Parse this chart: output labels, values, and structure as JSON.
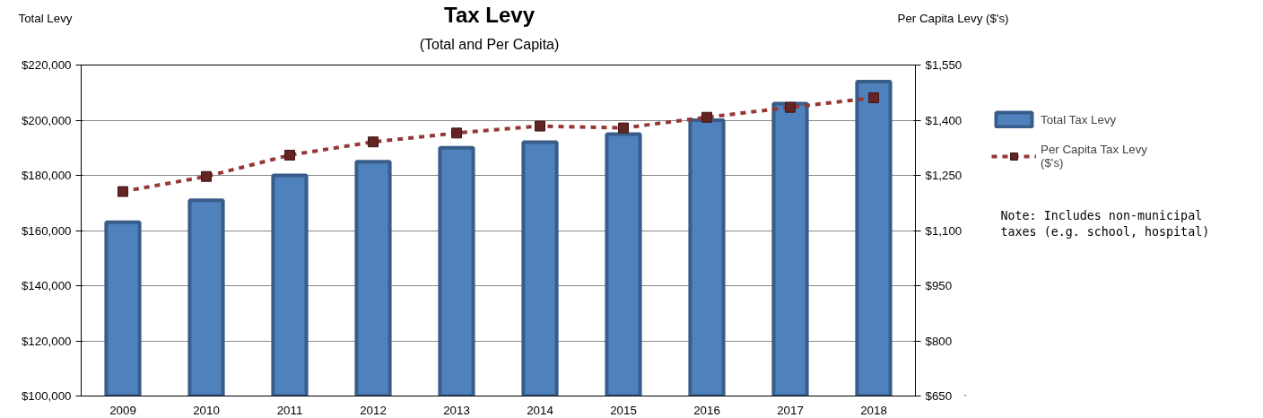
{
  "chart_data": {
    "type": "bar",
    "title": "Tax Levy",
    "subtitle": "(Total and Per Capita)",
    "ylabel": "Total Levy",
    "y2label": "Per Capita Levy ($'s)",
    "categories": [
      "2009",
      "2010",
      "2011",
      "2012",
      "2013",
      "2014",
      "2015",
      "2016",
      "2017",
      "2018"
    ],
    "series": [
      {
        "name": "Total Tax Levy",
        "type": "bar",
        "color": "#4f81bd",
        "values": [
          163000,
          171000,
          180000,
          185000,
          190000,
          192000,
          195000,
          200000,
          206000,
          214000
        ]
      },
      {
        "name": "Per Capita Tax Levy ($'s)",
        "type": "line",
        "axis": "y2",
        "color": "#953735",
        "marker": "square",
        "line_style": "dashed",
        "values": [
          1206,
          1247,
          1305,
          1341,
          1365,
          1384,
          1379,
          1408,
          1435,
          1461
        ]
      }
    ],
    "ylim": [
      100000,
      220000
    ],
    "yticks": [
      {
        "value": 100000,
        "label": "$100,000"
      },
      {
        "value": 120000,
        "label": "$120,000"
      },
      {
        "value": 140000,
        "label": "$140,000"
      },
      {
        "value": 160000,
        "label": "$160,000"
      },
      {
        "value": 180000,
        "label": "$180,000"
      },
      {
        "value": 200000,
        "label": "$200,000"
      },
      {
        "value": 220000,
        "label": "$220,000"
      }
    ],
    "y2lim": [
      650,
      1550
    ],
    "y2ticks": [
      {
        "value": 650,
        "label": "$650"
      },
      {
        "value": 800,
        "label": "$800"
      },
      {
        "value": 950,
        "label": "$950"
      },
      {
        "value": 1100,
        "label": "$1,100"
      },
      {
        "value": 1250,
        "label": "$1,250"
      },
      {
        "value": 1400,
        "label": "$1,400"
      },
      {
        "value": 1550,
        "label": "$1,550"
      }
    ],
    "grid": "y",
    "legend": "right",
    "annotations": [
      "Note: Includes non-municipal taxes (e.g. school, hospital)"
    ]
  }
}
